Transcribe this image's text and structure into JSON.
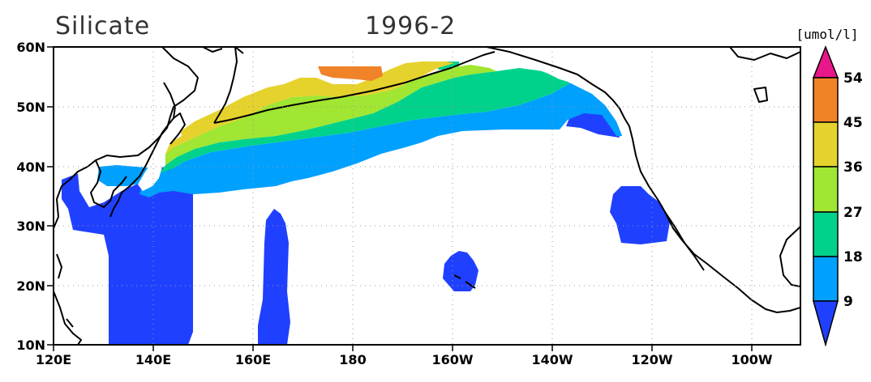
{
  "title": {
    "variable": "Silicate",
    "period": "1996-2"
  },
  "colorbar": {
    "units": "[umol/l]",
    "ticks": [
      "54",
      "45",
      "36",
      "27",
      "18",
      "9"
    ],
    "colors": {
      "gt54": "#e8178a",
      "45-54": "#f08228",
      "36-45": "#e6d22d",
      "27-36": "#a0e632",
      "18-27": "#00d28c",
      "9-18": "#00a0ff",
      "lt9": "#2040ff"
    }
  },
  "chart_data": {
    "type": "heatmap",
    "title": "Silicate 1996-2",
    "units": "[umol/l]",
    "x_ticks": [
      "120E",
      "140E",
      "160E",
      "180",
      "160W",
      "140W",
      "120W",
      "100W"
    ],
    "y_ticks": [
      "60N",
      "50N",
      "40N",
      "30N",
      "20N",
      "10N"
    ],
    "lon_range": [
      120,
      270
    ],
    "lat_range": [
      10,
      60
    ],
    "levels": [
      9,
      18,
      27,
      36,
      45,
      54
    ],
    "grid": "dotted"
  }
}
